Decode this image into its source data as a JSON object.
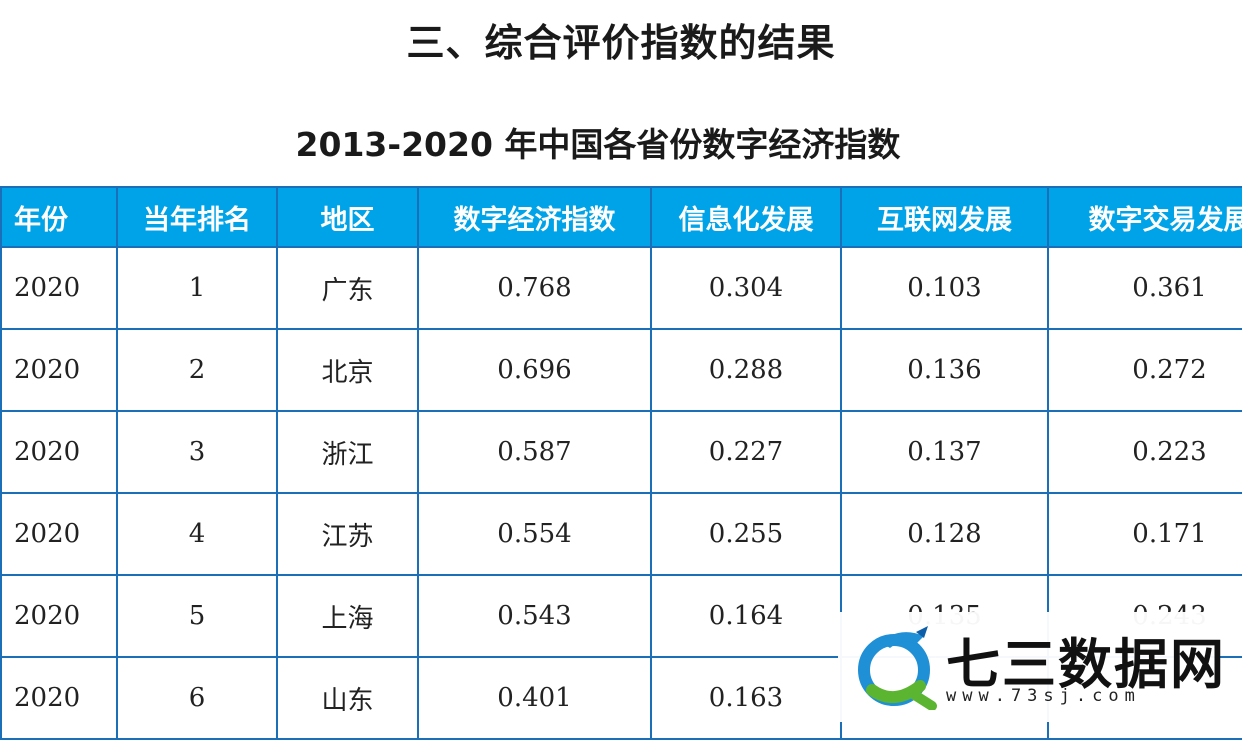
{
  "section_title": "三、综合评价指数的结果",
  "table_title": "2013-2020 年中国各省份数字经济指数",
  "table": {
    "headers": [
      "年份",
      "当年排名",
      "地区",
      "数字经济指数",
      "信息化发展",
      "互联网发展",
      "数字交易发展"
    ],
    "rows": [
      [
        "2020",
        "1",
        "广东",
        "0.768",
        "0.304",
        "0.103",
        "0.361"
      ],
      [
        "2020",
        "2",
        "北京",
        "0.696",
        "0.288",
        "0.136",
        "0.272"
      ],
      [
        "2020",
        "3",
        "浙江",
        "0.587",
        "0.227",
        "0.137",
        "0.223"
      ],
      [
        "2020",
        "4",
        "江苏",
        "0.554",
        "0.255",
        "0.128",
        "0.171"
      ],
      [
        "2020",
        "5",
        "上海",
        "0.543",
        "0.164",
        "0.135",
        "0.243"
      ],
      [
        "2020",
        "6",
        "山东",
        "0.401",
        "0.163",
        "",
        ""
      ]
    ]
  },
  "watermark": {
    "logo_icon": "dragon-q-logo-icon",
    "name": "七三数据网",
    "url": "www.73sj.com",
    "colors": {
      "blue": "#1f8fd6",
      "green": "#5cb531"
    }
  }
}
